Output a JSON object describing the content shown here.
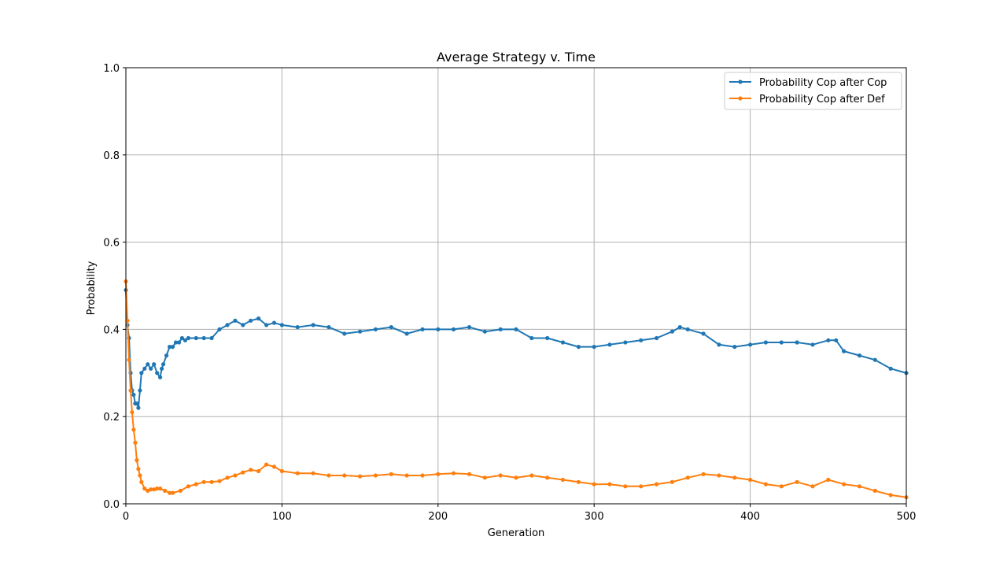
{
  "chart_data": {
    "type": "line",
    "title": "Average Strategy v. Time",
    "xlabel": "Generation",
    "ylabel": "Probability",
    "xlim": [
      0,
      500
    ],
    "ylim": [
      0,
      1.0
    ],
    "xticks": [
      0,
      100,
      200,
      300,
      400,
      500
    ],
    "xtick_labels": [
      "0",
      "100",
      "200",
      "300",
      "400",
      "500"
    ],
    "yticks": [
      0,
      0.2,
      0.4,
      0.6,
      0.8,
      1.0
    ],
    "ytick_labels": [
      "0.0",
      "0.2",
      "0.4",
      "0.6",
      "0.8",
      "1.0"
    ],
    "grid": true,
    "legend_position": "top-right",
    "marker": "dot",
    "series": [
      {
        "name": "Probability Cop after Cop",
        "color": "#1f77b4",
        "x": [
          0,
          1,
          2,
          3,
          4,
          5,
          6,
          7,
          8,
          9,
          10,
          12,
          14,
          16,
          18,
          20,
          22,
          23,
          24,
          26,
          28,
          30,
          32,
          34,
          36,
          38,
          40,
          45,
          50,
          55,
          60,
          65,
          70,
          75,
          80,
          85,
          90,
          95,
          100,
          110,
          120,
          130,
          140,
          150,
          160,
          170,
          180,
          190,
          200,
          210,
          220,
          230,
          240,
          250,
          260,
          270,
          280,
          290,
          300,
          310,
          320,
          330,
          340,
          350,
          355,
          360,
          370,
          380,
          390,
          400,
          410,
          420,
          430,
          440,
          450,
          455,
          460,
          470,
          480,
          490,
          500
        ],
        "y": [
          0.49,
          0.41,
          0.38,
          0.3,
          0.26,
          0.25,
          0.23,
          0.23,
          0.22,
          0.26,
          0.3,
          0.31,
          0.32,
          0.31,
          0.32,
          0.3,
          0.29,
          0.31,
          0.32,
          0.34,
          0.36,
          0.36,
          0.37,
          0.37,
          0.38,
          0.375,
          0.38,
          0.38,
          0.38,
          0.38,
          0.4,
          0.41,
          0.42,
          0.41,
          0.42,
          0.425,
          0.41,
          0.415,
          0.41,
          0.405,
          0.41,
          0.405,
          0.39,
          0.395,
          0.4,
          0.405,
          0.39,
          0.4,
          0.4,
          0.4,
          0.405,
          0.395,
          0.4,
          0.4,
          0.38,
          0.38,
          0.37,
          0.36,
          0.36,
          0.365,
          0.37,
          0.375,
          0.38,
          0.395,
          0.405,
          0.4,
          0.39,
          0.365,
          0.36,
          0.365,
          0.37,
          0.37,
          0.37,
          0.365,
          0.375,
          0.375,
          0.35,
          0.34,
          0.33,
          0.31,
          0.3
        ]
      },
      {
        "name": "Probability Cop after Def",
        "color": "#ff7f0e",
        "x": [
          0,
          1,
          2,
          3,
          4,
          5,
          6,
          7,
          8,
          9,
          10,
          12,
          14,
          16,
          18,
          20,
          22,
          25,
          28,
          30,
          35,
          40,
          45,
          50,
          55,
          60,
          65,
          70,
          75,
          80,
          85,
          90,
          95,
          100,
          110,
          120,
          130,
          140,
          150,
          160,
          170,
          180,
          190,
          200,
          210,
          220,
          230,
          240,
          250,
          260,
          270,
          280,
          290,
          300,
          310,
          320,
          330,
          340,
          350,
          360,
          370,
          380,
          390,
          400,
          410,
          420,
          430,
          440,
          450,
          460,
          470,
          480,
          490,
          500
        ],
        "y": [
          0.51,
          0.42,
          0.33,
          0.26,
          0.21,
          0.17,
          0.14,
          0.1,
          0.08,
          0.065,
          0.05,
          0.035,
          0.03,
          0.033,
          0.033,
          0.035,
          0.035,
          0.03,
          0.025,
          0.025,
          0.03,
          0.04,
          0.045,
          0.05,
          0.05,
          0.052,
          0.06,
          0.065,
          0.072,
          0.078,
          0.075,
          0.09,
          0.085,
          0.075,
          0.07,
          0.07,
          0.065,
          0.065,
          0.063,
          0.065,
          0.068,
          0.065,
          0.065,
          0.068,
          0.07,
          0.068,
          0.06,
          0.065,
          0.06,
          0.065,
          0.06,
          0.055,
          0.05,
          0.045,
          0.045,
          0.04,
          0.04,
          0.045,
          0.05,
          0.06,
          0.068,
          0.065,
          0.06,
          0.055,
          0.045,
          0.04,
          0.05,
          0.04,
          0.055,
          0.045,
          0.04,
          0.03,
          0.02,
          0.015
        ]
      }
    ]
  }
}
